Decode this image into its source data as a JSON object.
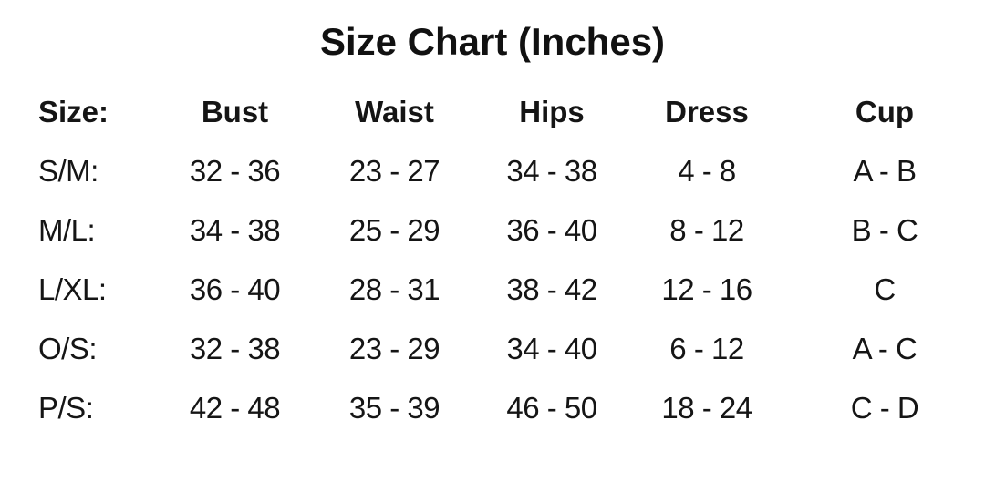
{
  "title": "Size Chart (Inches)",
  "colors": {
    "background": "#ffffff",
    "text": "#111111"
  },
  "chart_data": {
    "type": "table",
    "title": "Size Chart (Inches)",
    "columns": [
      "Size:",
      "Bust",
      "Waist",
      "Hips",
      "Dress",
      "Cup"
    ],
    "rows": [
      [
        "S/M:",
        "32 - 36",
        "23 - 27",
        "34 - 38",
        "4 - 8",
        "A - B"
      ],
      [
        "M/L:",
        "34 - 38",
        "25 - 29",
        "36 - 40",
        "8 - 12",
        "B - C"
      ],
      [
        "L/XL:",
        "36 - 40",
        "28 - 31",
        "38 - 42",
        "12 - 16",
        "C"
      ],
      [
        "O/S:",
        "32 - 38",
        "23 - 29",
        "34 - 40",
        "6 - 12",
        "A - C"
      ],
      [
        "P/S:",
        "42 - 48",
        "35 - 39",
        "46 - 50",
        "18 - 24",
        "C - D"
      ]
    ],
    "units": "inches",
    "grid": false,
    "legend": "none"
  }
}
